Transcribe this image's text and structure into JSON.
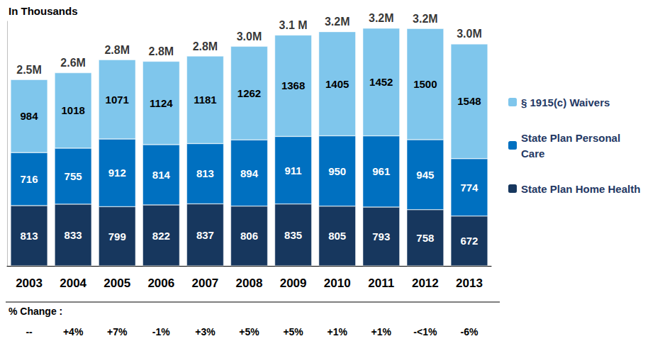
{
  "chart_data": {
    "type": "bar",
    "title": "In Thousands",
    "categories": [
      "2003",
      "2004",
      "2005",
      "2006",
      "2007",
      "2008",
      "2009",
      "2010",
      "2011",
      "2012",
      "2013"
    ],
    "series": [
      {
        "name": "State Plan Home Health",
        "color": "#17375E",
        "values": [
          813,
          833,
          799,
          822,
          837,
          806,
          835,
          805,
          793,
          758,
          672
        ]
      },
      {
        "name": "State Plan Personal Care",
        "color": "#0070C0",
        "values": [
          716,
          755,
          912,
          814,
          813,
          894,
          911,
          950,
          961,
          945,
          774
        ]
      },
      {
        "name": "§ 1915(c) Waivers",
        "color": "#7FC6EC",
        "values": [
          984,
          1018,
          1071,
          1124,
          1181,
          1262,
          1368,
          1405,
          1452,
          1500,
          1548
        ]
      }
    ],
    "totals": {
      "values": [
        2513,
        2606,
        2782,
        2760,
        2831,
        2962,
        3114,
        3160,
        3206,
        3203,
        2994
      ],
      "value_labels": [
        "2.5M",
        "2.6M",
        "2.8M",
        "2.8M",
        "2.8M",
        "3.0M",
        "3.1 M",
        "3.2M",
        "3.2M",
        "3.2M",
        "3.0M"
      ]
    },
    "percent_change": {
      "title": "% Change :",
      "labels": [
        "--",
        "+4%",
        "+7%",
        "-1%",
        "+3%",
        "+5%",
        "+5%",
        "+1%",
        "+1%",
        "-<1%",
        "-6%"
      ]
    },
    "ylim": [
      0,
      3300
    ],
    "stacked": true,
    "data_labels": true,
    "tick_labels": "x",
    "grid": false,
    "legend": "right"
  }
}
